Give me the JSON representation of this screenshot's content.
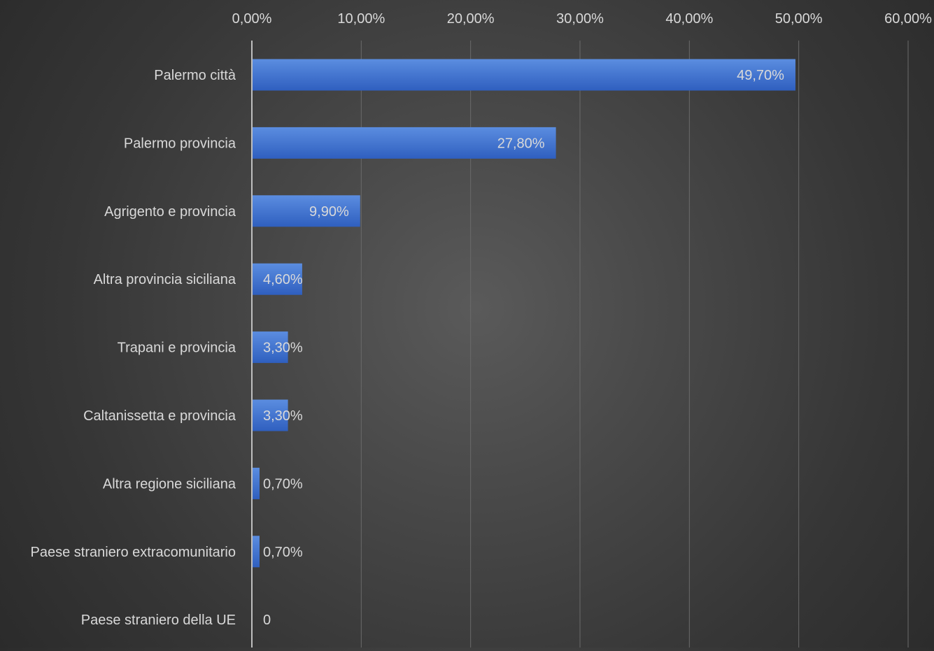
{
  "chart_data": {
    "type": "bar",
    "orientation": "horizontal",
    "categories": [
      "Palermo città",
      "Palermo provincia",
      "Agrigento e provincia",
      "Altra provincia siciliana",
      "Trapani e provincia",
      "Caltanissetta e provincia",
      "Altra regione siciliana",
      "Paese straniero extracomunitario",
      "Paese straniero della UE"
    ],
    "values": [
      49.7,
      27.8,
      9.9,
      4.6,
      3.3,
      3.3,
      0.7,
      0.7,
      0
    ],
    "data_labels": [
      "49,70%",
      "27,80%",
      "9,90%",
      "4,60%",
      "3,30%",
      "3,30%",
      "0,70%",
      "0,70%",
      "0"
    ],
    "x_ticks": [
      0,
      10,
      20,
      30,
      40,
      50,
      60
    ],
    "x_tick_labels": [
      "0,00%",
      "10,00%",
      "20,00%",
      "30,00%",
      "40,00%",
      "50,00%",
      "60,00%"
    ],
    "xlim": [
      0,
      60
    ],
    "x_axis_position": "top",
    "grid": true,
    "title": "",
    "xlabel": "",
    "ylabel": "",
    "colors": {
      "bar_top": "#5b8de0",
      "bar_bottom": "#2f5fbf",
      "text": "#d9d9d9",
      "gridline": "#6a6a6a",
      "axis_line": "#bfbfbf"
    }
  }
}
